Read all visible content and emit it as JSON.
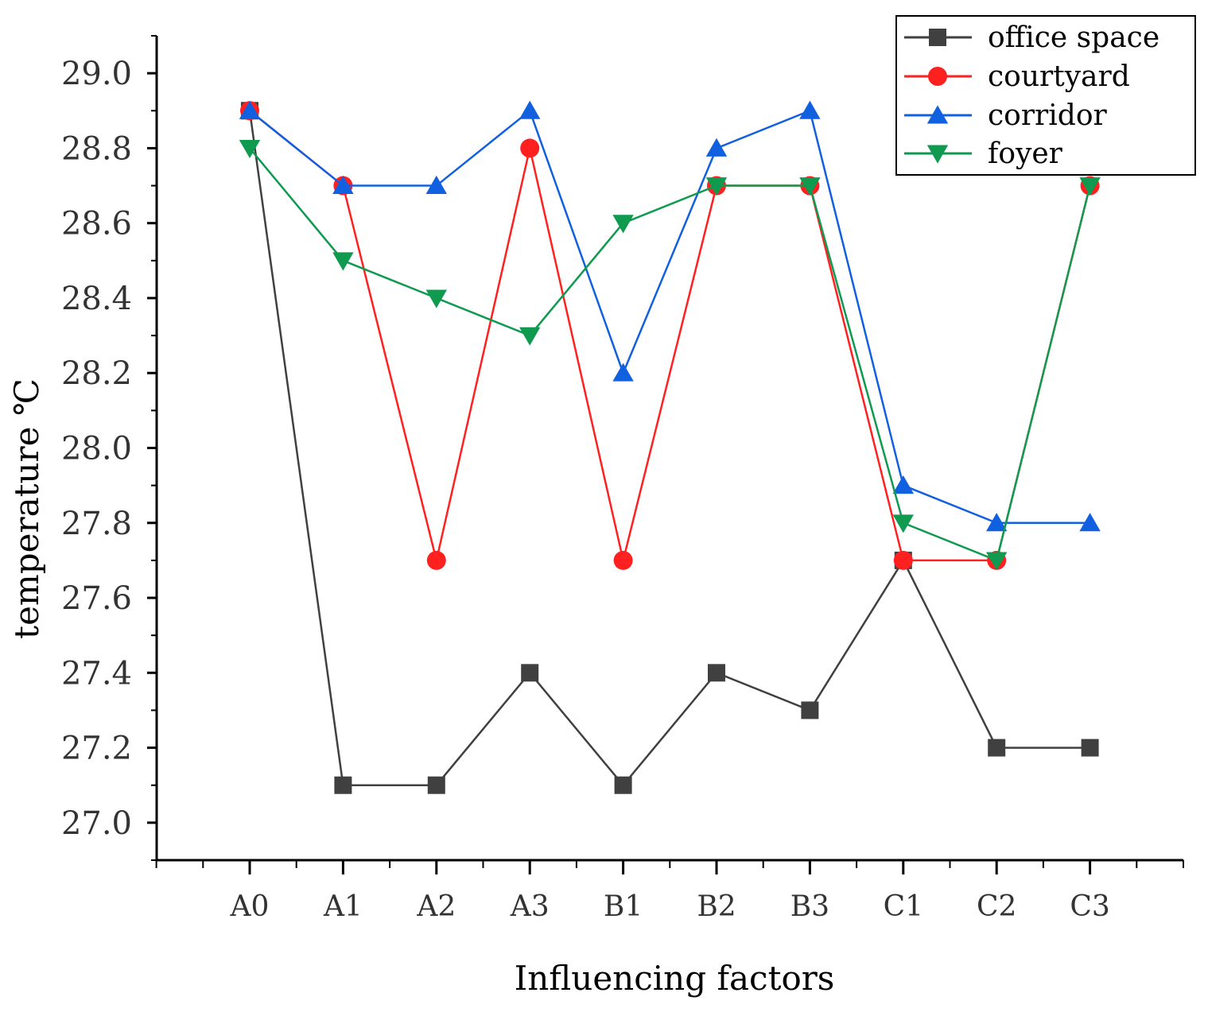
{
  "chart_data": {
    "type": "line",
    "title": "",
    "xlabel": "Influencing factors",
    "ylabel": "temperature ℃",
    "categories": [
      "A0",
      "A1",
      "A2",
      "A3",
      "B1",
      "B2",
      "B3",
      "C1",
      "C2",
      "C3"
    ],
    "ylim": [
      26.9,
      29.1
    ],
    "yticks": [
      "27.0",
      "27.2",
      "27.4",
      "27.6",
      "27.8",
      "28.0",
      "28.2",
      "28.4",
      "28.6",
      "28.8",
      "29.0"
    ],
    "legend_position": "top-right",
    "series": [
      {
        "name": "office space",
        "marker": "square",
        "color": "#404040",
        "values": [
          28.9,
          27.1,
          27.1,
          27.4,
          27.1,
          27.4,
          27.3,
          27.7,
          27.2,
          27.2
        ]
      },
      {
        "name": "courtyard",
        "marker": "circle",
        "color": "#ff2020",
        "values": [
          28.9,
          28.7,
          27.7,
          28.8,
          27.7,
          28.7,
          28.7,
          27.7,
          27.7,
          28.7
        ]
      },
      {
        "name": "corridor",
        "marker": "triangle-up",
        "color": "#1060e0",
        "values": [
          28.9,
          28.7,
          28.7,
          28.9,
          28.2,
          28.8,
          28.9,
          27.9,
          27.8,
          27.8
        ]
      },
      {
        "name": "foyer",
        "marker": "triangle-down",
        "color": "#0f9a50",
        "values": [
          28.8,
          28.5,
          28.4,
          28.3,
          28.6,
          28.7,
          28.7,
          27.8,
          27.7,
          28.7
        ]
      }
    ]
  }
}
